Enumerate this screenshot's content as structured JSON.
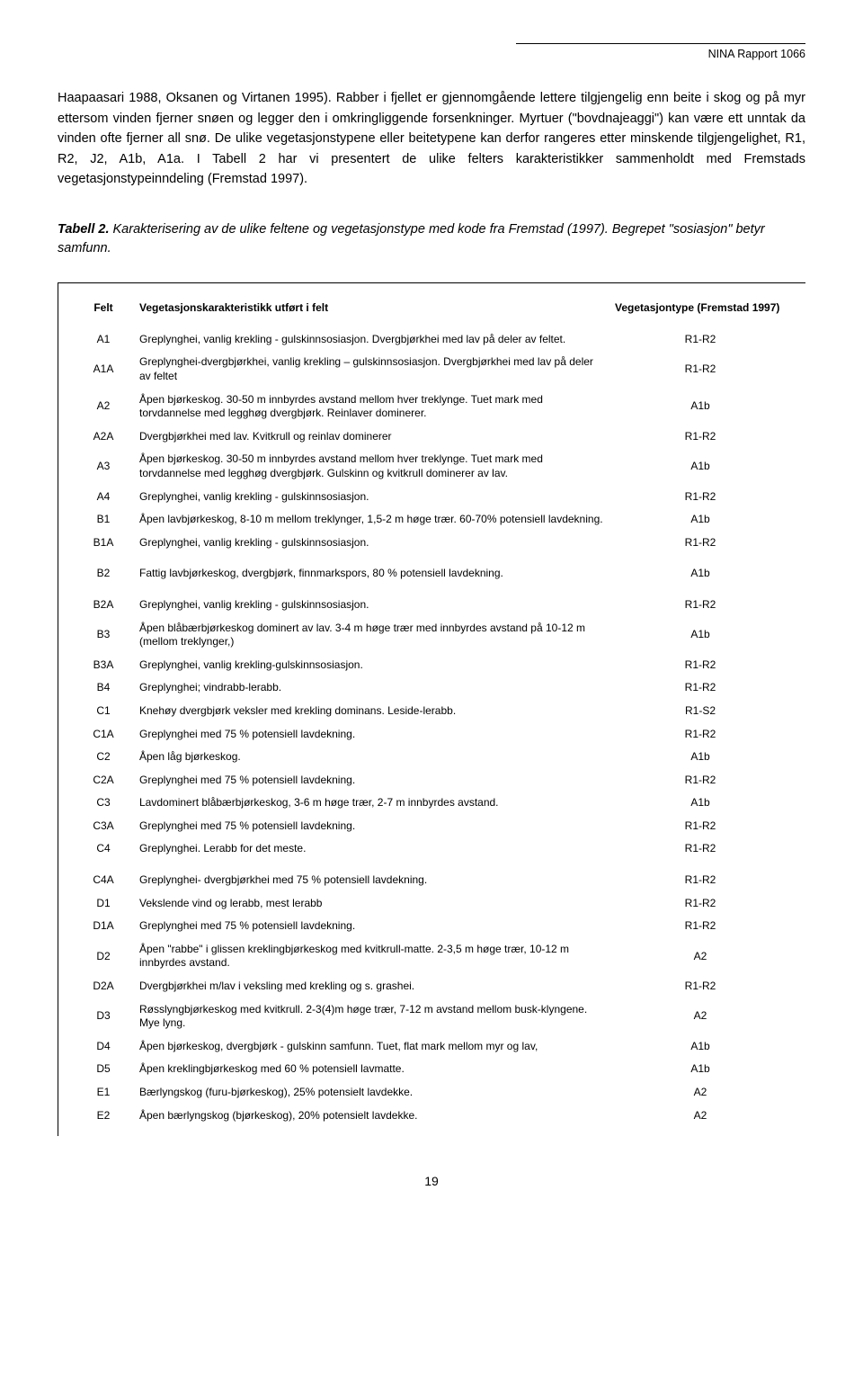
{
  "header": {
    "report_label": "NINA Rapport 1066"
  },
  "body": {
    "paragraph": "Haapaasari 1988, Oksanen og Virtanen 1995). Rabber i fjellet er gjennomgående lettere tilgjengelig enn beite i skog og på myr ettersom vinden fjerner snøen og legger den i omkringliggende forsenkninger. Myrtuer (\"bovdnajeaggi\") kan være ett unntak da vinden ofte fjerner all snø. De ulike vegetasjonstypene eller beitetypene kan derfor rangeres etter minskende tilgjengelighet, R1, R2, J2, A1b, A1a. I Tabell 2 har vi presentert de ulike felters karakteristikker sammenholdt med Fremstads vegetasjonstypeinndeling (Fremstad 1997)."
  },
  "caption": {
    "lead": "Tabell 2.",
    "rest": " Karakterisering av de ulike feltene og vegetasjonstype med kode fra Fremstad (1997). Begrepet \"sosiasjon\" betyr samfunn."
  },
  "table": {
    "headers": {
      "felt": "Felt",
      "desc": "Vegetasjonskarakteristikk utført i felt",
      "type": "Vegetasjontype (Fremstad 1997)"
    },
    "rows": [
      {
        "felt": "A1",
        "desc": "Greplynghei, vanlig krekling - gulskinnsosiasjon. Dvergbjørkhei med lav på deler av feltet.",
        "type": "R1-R2",
        "gap": false
      },
      {
        "felt": "A1A",
        "desc": "Greplynghei-dvergbjørkhei, vanlig krekling – gulskinnsosiasjon. Dvergbjørkhei med lav på deler av feltet",
        "type": "R1-R2",
        "gap": false
      },
      {
        "felt": "A2",
        "desc": "Åpen bjørkeskog. 30-50 m innbyrdes avstand mellom hver treklynge. Tuet mark med torvdannelse med legghøg dvergbjørk.  Reinlaver dominerer.",
        "type": "A1b",
        "gap": false
      },
      {
        "felt": "A2A",
        "desc": "Dvergbjørkhei med lav. Kvitkrull og reinlav dominerer",
        "type": "R1-R2",
        "gap": false
      },
      {
        "felt": "A3",
        "desc": "Åpen bjørkeskog. 30-50 m innbyrdes avstand mellom hver treklynge. Tuet mark med torvdannelse med legghøg dvergbjørk. Gulskinn og kvitkrull dominerer av lav.",
        "type": "A1b",
        "gap": false
      },
      {
        "felt": "A4",
        "desc": "Greplynghei, vanlig krekling - gulskinnsosiasjon.",
        "type": "R1-R2",
        "gap": false
      },
      {
        "felt": "B1",
        "desc": "Åpen lavbjørkeskog, 8-10 m mellom treklynger, 1,5-2 m høge trær. 60-70% potensiell lavdekning.",
        "type": "A1b",
        "gap": false
      },
      {
        "felt": "B1A",
        "desc": "Greplynghei, vanlig krekling - gulskinnsosiasjon.",
        "type": "R1-R2",
        "gap": false
      },
      {
        "felt": "B2",
        "desc": "Fattig lavbjørkeskog, dvergbjørk, finnmarkspors, 80 % potensiell lavdekning.",
        "type": "A1b",
        "gap": true
      },
      {
        "felt": "B2A",
        "desc": "Greplynghei, vanlig krekling - gulskinnsosiasjon.",
        "type": "R1-R2",
        "gap": true
      },
      {
        "felt": "B3",
        "desc": "Åpen blåbærbjørkeskog dominert av lav. 3-4 m høge trær med innbyrdes avstand på 10-12 m (mellom treklynger,)",
        "type": "A1b",
        "gap": false
      },
      {
        "felt": "B3A",
        "desc": "Greplynghei, vanlig krekling-gulskinnsosiasjon.",
        "type": "R1-R2",
        "gap": false
      },
      {
        "felt": "B4",
        "desc": "Greplynghei; vindrabb-lerabb.",
        "type": "R1-R2",
        "gap": false
      },
      {
        "felt": "C1",
        "desc": "Knehøy dvergbjørk veksler med krekling dominans. Leside-lerabb.",
        "type": "R1-S2",
        "gap": false
      },
      {
        "felt": "C1A",
        "desc": "Greplynghei med 75 % potensiell lavdekning.",
        "type": "R1-R2",
        "gap": false
      },
      {
        "felt": "C2",
        "desc": "Åpen låg bjørkeskog.",
        "type": "A1b",
        "gap": false
      },
      {
        "felt": "C2A",
        "desc": "Greplynghei med 75 % potensiell lavdekning.",
        "type": "R1-R2",
        "gap": false
      },
      {
        "felt": "C3",
        "desc": "Lavdominert blåbærbjørkeskog, 3-6 m høge trær, 2-7 m innbyrdes avstand.",
        "type": "A1b",
        "gap": false
      },
      {
        "felt": "C3A",
        "desc": "Greplynghei med 75 % potensiell lavdekning.",
        "type": "R1-R2",
        "gap": false
      },
      {
        "felt": "C4",
        "desc": "Greplynghei. Lerabb for det meste.",
        "type": "R1-R2",
        "gap": false
      },
      {
        "felt": "C4A",
        "desc": "Greplynghei- dvergbjørkhei med 75 % potensiell lavdekning.",
        "type": "R1-R2",
        "gap": true
      },
      {
        "felt": "D1",
        "desc": "Vekslende vind og lerabb, mest lerabb",
        "type": "R1-R2",
        "gap": false
      },
      {
        "felt": "D1A",
        "desc": "Greplynghei med 75 % potensiell lavdekning.",
        "type": "R1-R2",
        "gap": false
      },
      {
        "felt": "D2",
        "desc": "Åpen \"rabbe\" i glissen kreklingbjørkeskog med kvitkrull-matte. 2-3,5 m høge trær, 10-12 m innbyrdes avstand.",
        "type": "A2",
        "gap": false
      },
      {
        "felt": "D2A",
        "desc": "Dvergbjørkhei m/lav i veksling med krekling og s. grashei.",
        "type": "R1-R2",
        "gap": false
      },
      {
        "felt": "D3",
        "desc": "Røsslyngbjørkeskog med kvitkrull. 2-3(4)m høge trær, 7-12 m avstand mellom busk-klyngene. Mye lyng.",
        "type": "A2",
        "gap": false
      },
      {
        "felt": "D4",
        "desc": "Åpen bjørkeskog, dvergbjørk - gulskinn samfunn. Tuet, flat mark mellom myr og lav,",
        "type": "A1b",
        "gap": false
      },
      {
        "felt": "D5",
        "desc": "Åpen kreklingbjørkeskog med 60 % potensiell lavmatte.",
        "type": "A1b",
        "gap": false
      },
      {
        "felt": "E1",
        "desc": "Bærlyngskog (furu-bjørkeskog), 25% potensielt lavdekke.",
        "type": "A2",
        "gap": false
      },
      {
        "felt": "E2",
        "desc": "Åpen bærlyngskog (bjørkeskog), 20% potensielt lavdekke.",
        "type": "A2",
        "gap": false
      }
    ]
  },
  "page_number": "19"
}
